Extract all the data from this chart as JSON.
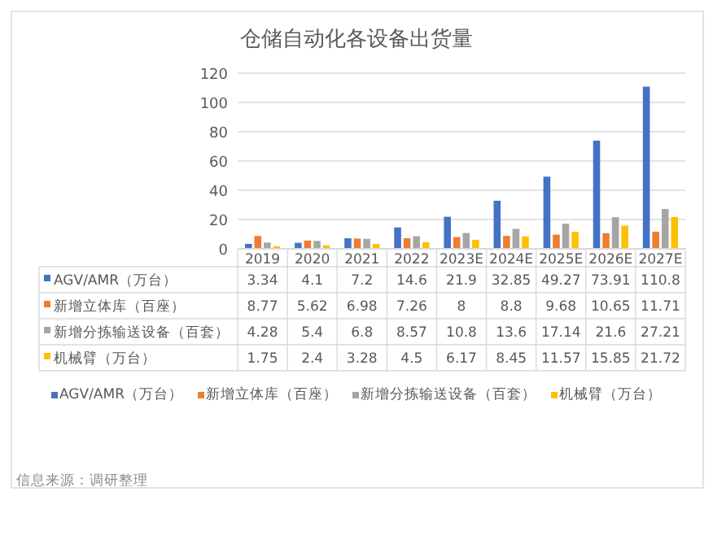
{
  "chart_data": {
    "type": "bar",
    "title": "仓储自动化各设备出货量",
    "categories": [
      "2019",
      "2020",
      "2021",
      "2022",
      "2023E",
      "2024E",
      "2025E",
      "2026E",
      "2027E"
    ],
    "series": [
      {
        "name": "AGV/AMR（万台）",
        "color": "#4472c4",
        "values": [
          3.34,
          4.1,
          7.2,
          14.6,
          21.9,
          32.85,
          49.27,
          73.91,
          110.8
        ]
      },
      {
        "name": "新增立体库（百座）",
        "color": "#ed7d31",
        "values": [
          8.77,
          5.62,
          6.98,
          7.26,
          8,
          8.8,
          9.68,
          10.65,
          11.71
        ]
      },
      {
        "name": "新增分拣输送设备（百套）",
        "color": "#a5a5a5",
        "values": [
          4.28,
          5.4,
          6.8,
          8.57,
          10.8,
          13.6,
          17.14,
          21.6,
          27.21
        ]
      },
      {
        "name": "机械臂（万台）",
        "color": "#ffc000",
        "values": [
          1.75,
          2.4,
          3.28,
          4.5,
          6.17,
          8.45,
          11.57,
          15.85,
          21.72
        ]
      }
    ],
    "ylim": [
      0,
      120
    ],
    "yticks": [
      0,
      20,
      40,
      60,
      80,
      100,
      120
    ],
    "grid": "y",
    "legend": "bottom",
    "data_labels": true,
    "annotations": [
      "信息来源：调研整理"
    ]
  }
}
